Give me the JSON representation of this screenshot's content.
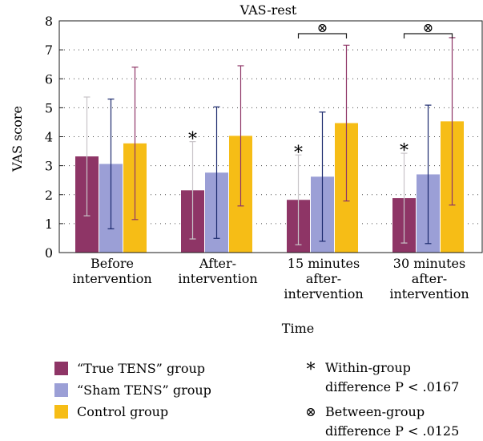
{
  "chart_data": {
    "type": "bar",
    "title": "VAS-rest",
    "xlabel": "Time",
    "ylabel": "VAS score",
    "ylim": [
      0,
      8
    ],
    "yticks": [
      "0",
      "1",
      "2",
      "3",
      "4",
      "5",
      "6",
      "7",
      "8"
    ],
    "grid": "horizontal dotted",
    "categories": [
      [
        "Before",
        "intervention"
      ],
      [
        "After-",
        "intervention"
      ],
      [
        "15 minutes",
        "after-",
        "intervention"
      ],
      [
        "30 minutes",
        "after-",
        "intervention"
      ]
    ],
    "series": [
      {
        "name": "“True TENS” group",
        "color": "#8e3566",
        "errcolor": "#c8c4c8",
        "values": [
          3.32,
          2.15,
          1.82,
          1.88
        ],
        "err": [
          2.05,
          1.68,
          1.55,
          1.55
        ]
      },
      {
        "name": "“Sham TENS” group",
        "color": "#9b9fd6",
        "errcolor": "#1c2a6e",
        "values": [
          3.06,
          2.76,
          2.62,
          2.7
        ],
        "err": [
          2.24,
          2.27,
          2.23,
          2.39
        ]
      },
      {
        "name": "Control group",
        "color": "#f6bd16",
        "errcolor": "#8e3566",
        "values": [
          3.77,
          4.03,
          4.47,
          4.53
        ],
        "err": [
          2.63,
          2.42,
          2.69,
          2.89
        ]
      }
    ],
    "within_marks": [
      1,
      2,
      3
    ],
    "between_marks": [
      2,
      3
    ],
    "within_symbol": "*",
    "between_symbol": "⊗",
    "notes": [
      {
        "symbol": "*",
        "lines": [
          "Within-group",
          "difference P < .0167"
        ]
      },
      {
        "symbol": "⊗",
        "lines": [
          "Between-group",
          "difference P < .0125"
        ]
      }
    ]
  }
}
